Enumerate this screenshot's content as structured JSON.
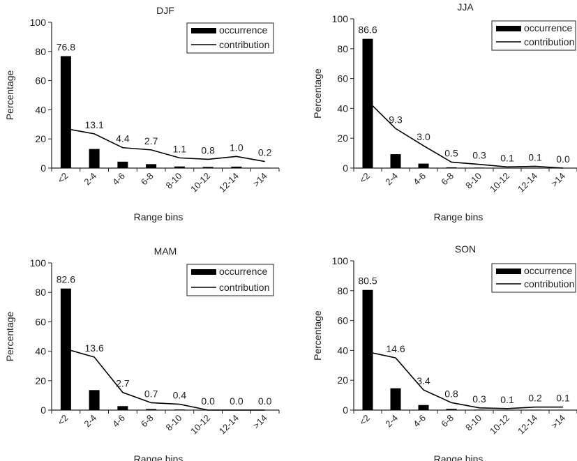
{
  "chart_data": [
    {
      "type": "bar",
      "title": "DJF",
      "xlabel": "Range bins",
      "ylabel": "Percentage",
      "ylim": [
        0,
        100
      ],
      "yticks": [
        0,
        20,
        40,
        60,
        80,
        100
      ],
      "categories": [
        "<2",
        "2-4",
        "4-6",
        "6-8",
        "8-10",
        "10-12",
        "12-14",
        ">14"
      ],
      "series": [
        {
          "name": "occurrence",
          "kind": "bar",
          "values": [
            76.8,
            13.1,
            4.4,
            2.7,
            1.1,
            0.8,
            1.0,
            0.2
          ]
        },
        {
          "name": "contribution",
          "kind": "line",
          "values": [
            27,
            23.5,
            14,
            12.5,
            7,
            6,
            8,
            4.5
          ]
        }
      ],
      "data_labels": [
        "76.8",
        "13.1",
        "4.4",
        "2.7",
        "1.1",
        "0.8",
        "1.0",
        "0.2"
      ],
      "legend": "top-right",
      "grid": false
    },
    {
      "type": "bar",
      "title": "JJA",
      "xlabel": "Range bins",
      "ylabel": "Percentage",
      "ylim": [
        0,
        100
      ],
      "yticks": [
        0,
        20,
        40,
        60,
        80,
        100
      ],
      "categories": [
        "<2",
        "2-4",
        "4-6",
        "6-8",
        "8-10",
        "10-12",
        "12-14",
        ">14"
      ],
      "series": [
        {
          "name": "occurrence",
          "kind": "bar",
          "values": [
            86.6,
            9.3,
            3.0,
            0.5,
            0.3,
            0.1,
            0.1,
            0.0
          ]
        },
        {
          "name": "contribution",
          "kind": "line",
          "values": [
            45,
            26.5,
            15,
            4,
            2.5,
            0.8,
            1.2,
            0
          ]
        }
      ],
      "data_labels": [
        "86.6",
        "9.3",
        "3.0",
        "0.5",
        "0.3",
        "0.1",
        "0.1",
        "0.0"
      ],
      "legend": "top-right",
      "grid": false
    },
    {
      "type": "bar",
      "title": "MAM",
      "xlabel": "Range bins",
      "ylabel": "Percentage",
      "ylim": [
        0,
        100
      ],
      "yticks": [
        0,
        20,
        40,
        60,
        80,
        100
      ],
      "categories": [
        "<2",
        "2-4",
        "4-6",
        "6-8",
        "8-10",
        "10-12",
        "12-14",
        ">14"
      ],
      "series": [
        {
          "name": "occurrence",
          "kind": "bar",
          "values": [
            82.6,
            13.6,
            2.7,
            0.7,
            0.4,
            0.0,
            0.0,
            0.0
          ]
        },
        {
          "name": "contribution",
          "kind": "line",
          "values": [
            41.5,
            36,
            12,
            5,
            4,
            0,
            0,
            0
          ]
        }
      ],
      "data_labels": [
        "82.6",
        "13.6",
        "2.7",
        "0.7",
        "0.4",
        "0.0",
        "0.0",
        "0.0"
      ],
      "legend": "top-right",
      "grid": false
    },
    {
      "type": "bar",
      "title": "SON",
      "xlabel": "Range bins",
      "ylabel": "Percentage",
      "ylim": [
        0,
        100
      ],
      "yticks": [
        0,
        20,
        40,
        60,
        80,
        100
      ],
      "categories": [
        "<2",
        "2-4",
        "4-6",
        "6-8",
        "8-10",
        "10-12",
        "12-14",
        ">14"
      ],
      "series": [
        {
          "name": "occurrence",
          "kind": "bar",
          "values": [
            80.5,
            14.6,
            3.4,
            0.8,
            0.3,
            0.1,
            0.2,
            0.1
          ]
        },
        {
          "name": "contribution",
          "kind": "line",
          "values": [
            39,
            35,
            13.5,
            5,
            1.5,
            1,
            2,
            2
          ]
        }
      ],
      "data_labels": [
        "80.5",
        "14.6",
        "3.4",
        "0.8",
        "0.3",
        "0.1",
        "0.2",
        "0.1"
      ],
      "legend": "top-right",
      "grid": false
    }
  ]
}
